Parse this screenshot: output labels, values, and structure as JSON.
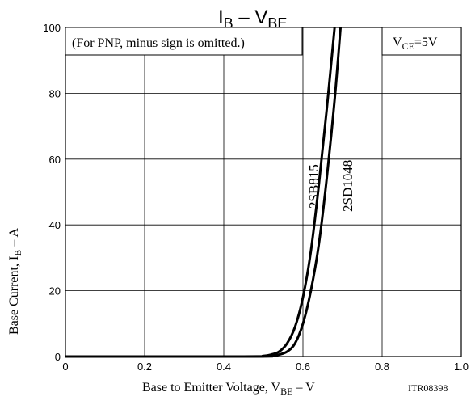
{
  "chart_data": {
    "type": "line",
    "title_main": "I",
    "title_main_sub": "B",
    "title_dash": " – V",
    "title_dash_sub": "BE",
    "xlabel_text": "Base to Emitter Voltage, V",
    "xlabel_sub": "BE",
    "xlabel_unit": " – V",
    "ylabel_text": "Base Current, I",
    "ylabel_sub": "B",
    "ylabel_unit": " – A",
    "note": "(For PNP, minus sign is omitted.)",
    "condition_text": "V",
    "condition_sub": "CE",
    "condition_val": "=5V",
    "code": "ITR08398",
    "xlim": [
      0,
      1.0
    ],
    "ylim": [
      0,
      100
    ],
    "xticks": [
      "0",
      "0.2",
      "0.4",
      "0.6",
      "0.8",
      "1.0"
    ],
    "yticks": [
      "0",
      "20",
      "40",
      "60",
      "80",
      "100"
    ],
    "grid": true,
    "series": [
      {
        "name": "2SB815",
        "x": [
          0.0,
          0.45,
          0.5,
          0.52,
          0.54,
          0.56,
          0.58,
          0.6,
          0.62,
          0.64,
          0.66,
          0.68
        ],
        "y": [
          0,
          0,
          0.2,
          0.6,
          1.5,
          4,
          9,
          18,
          32,
          52,
          75,
          100
        ]
      },
      {
        "name": "2SD1048",
        "x": [
          0.0,
          0.47,
          0.52,
          0.54,
          0.56,
          0.58,
          0.6,
          0.62,
          0.64,
          0.66,
          0.68,
          0.695
        ],
        "y": [
          0,
          0,
          0.2,
          0.6,
          1.5,
          4,
          10,
          20,
          34,
          54,
          78,
          100
        ]
      }
    ]
  }
}
